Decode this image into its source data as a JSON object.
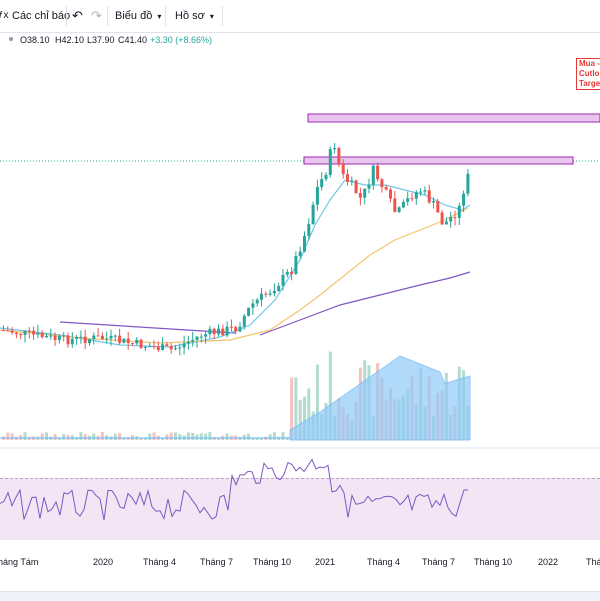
{
  "toolbar": {
    "fx_icon": "fx-icon",
    "indicators_label": "Các chỉ báo",
    "undo_icon": "undo-icon",
    "redo_icon": "redo-icon",
    "chart_label": "Biểu đồ",
    "chart_chevron": "chevron-down-icon",
    "profile_label": "Hồ sơ",
    "profile_chevron": "chevron-down-icon"
  },
  "legend": {
    "open": "O38.10",
    "high": "H42.10",
    "low": "L37.90",
    "close": "C41.40",
    "change": "+3.30 (+8.66%)"
  },
  "annotation": {
    "line1": "Mua -",
    "line2": "Cutlo",
    "line3": "Targe"
  },
  "x_axis": {
    "labels": [
      "háng Tám",
      "2020",
      "Tháng 4",
      "Tháng 7",
      "Tháng 10",
      "2021",
      "Tháng 4",
      "Tháng 7",
      "Tháng 10",
      "2022",
      "Tháng"
    ]
  },
  "colors": {
    "up": "#26a69a",
    "down": "#ef5350",
    "ma_fast": "#6fc8e8",
    "ma_mid": "#f5c36b",
    "ma_slow": "#7e57c2",
    "zone": "#e1bee7",
    "rsi": "#7e57c2",
    "volume_ma": "#64b5f6"
  }
}
